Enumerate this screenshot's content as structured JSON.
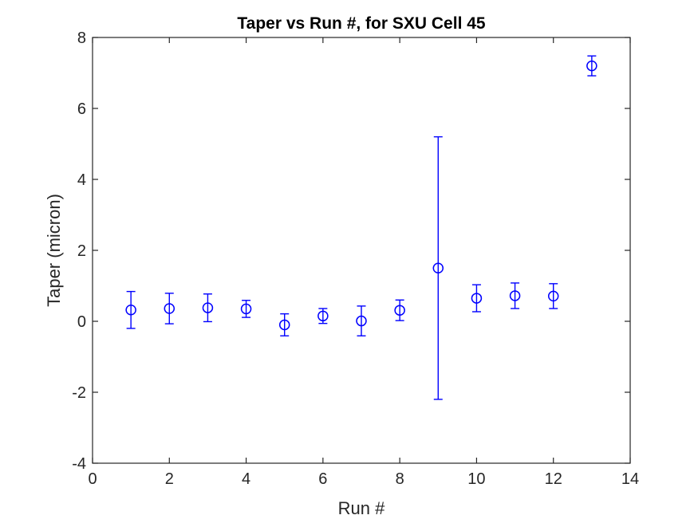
{
  "figure": {
    "title": "Taper vs Run #, for SXU Cell 45",
    "xlabel": "Run #",
    "ylabel": "Taper (micron)"
  },
  "chart_data": {
    "type": "scatter",
    "subtype": "errorbar",
    "title": "Taper vs Run #, for SXU Cell 45",
    "xlabel": "Run #",
    "ylabel": "Taper (micron)",
    "xlim": [
      0,
      14
    ],
    "ylim": [
      -4,
      8
    ],
    "xticks": [
      0,
      2,
      4,
      6,
      8,
      10,
      12,
      14
    ],
    "yticks": [
      -4,
      -2,
      0,
      2,
      4,
      6,
      8
    ],
    "grid": false,
    "legend_position": "none",
    "marker": "open-circle",
    "colors": {
      "marker": "#0000FF",
      "axis": "#262626",
      "tick_label": "#262626",
      "title": "#000000",
      "background": "#FFFFFF"
    },
    "series": [
      {
        "name": "Taper",
        "x": [
          1,
          2,
          3,
          4,
          5,
          6,
          7,
          8,
          9,
          10,
          11,
          12,
          13
        ],
        "y": [
          0.32,
          0.36,
          0.38,
          0.35,
          -0.1,
          0.15,
          0.01,
          0.31,
          1.5,
          0.65,
          0.72,
          0.71,
          7.2
        ],
        "yerr": [
          0.52,
          0.43,
          0.39,
          0.24,
          0.31,
          0.21,
          0.42,
          0.29,
          3.7,
          0.38,
          0.36,
          0.35,
          0.28
        ]
      }
    ]
  }
}
